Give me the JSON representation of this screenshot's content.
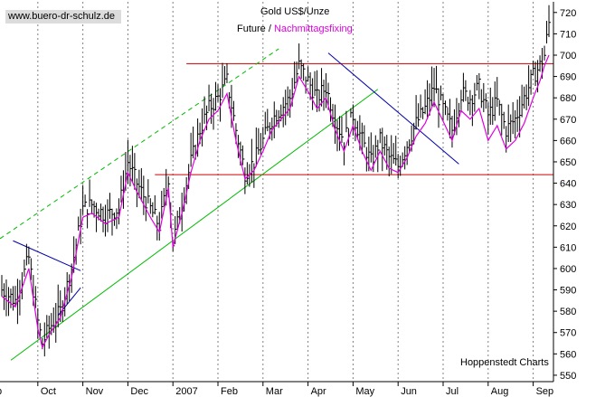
{
  "header": {
    "watermark": "www.buero-dr-schulz.de",
    "title": "Gold US$/Unze",
    "subtitle_prefix": "Future /",
    "subtitle_highlight": "Nachmittagsfixing",
    "source": "Hoppenstedt Charts"
  },
  "colors": {
    "price_bars": "#000000",
    "fixing_line": "#e000e0",
    "resistance_lines": "#cc0000",
    "trend_channel": "#00bb00",
    "down_trend": "#0000aa",
    "grid": "#808080",
    "watermark_bg": "#dcdcdc"
  },
  "chart_data": {
    "type": "line",
    "title": "Gold US$/Unze",
    "subtitle": "Future / Nachmittagsfixing",
    "ylim": [
      547,
      725
    ],
    "yticks": [
      550,
      560,
      570,
      580,
      590,
      600,
      610,
      620,
      630,
      640,
      650,
      660,
      670,
      680,
      690,
      700,
      710,
      720
    ],
    "y_axis_position": "right",
    "x_labels": [
      "Oct",
      "Nov",
      "Dec",
      "2007",
      "Feb",
      "Mar",
      "Apr",
      "May",
      "Jun",
      "Jul",
      "Aug",
      "Sep"
    ],
    "x_label_month_index": [
      1,
      2,
      3,
      4,
      5,
      6,
      7,
      8,
      9,
      10,
      11,
      12
    ],
    "first_x_label_clipped": "p",
    "x_domain_months": [
      0.16,
      12.45
    ],
    "grid": "vertical dashed at month starts",
    "series": [
      {
        "name": "Future",
        "style": "daily high-low bars",
        "x": [
          0.2,
          0.5,
          0.8,
          1.0,
          1.1,
          1.25,
          1.5,
          1.75,
          2.0,
          2.2,
          2.5,
          2.8,
          3.0,
          3.2,
          3.5,
          3.7,
          3.9,
          4.0,
          4.2,
          4.4,
          4.6,
          4.8,
          5.0,
          5.2,
          5.4,
          5.6,
          5.8,
          6.0,
          6.2,
          6.4,
          6.6,
          6.8,
          7.0,
          7.2,
          7.4,
          7.6,
          7.8,
          8.0,
          8.2,
          8.4,
          8.6,
          8.8,
          9.0,
          9.2,
          9.4,
          9.6,
          9.8,
          10.0,
          10.2,
          10.4,
          10.6,
          10.8,
          11.0,
          11.2,
          11.4,
          11.6,
          11.8,
          12.0,
          12.15,
          12.25,
          12.35
        ],
        "close": [
          590,
          585,
          605,
          575,
          565,
          572,
          580,
          600,
          628,
          630,
          625,
          628,
          650,
          640,
          628,
          620,
          643,
          612,
          630,
          650,
          665,
          675,
          680,
          688,
          665,
          645,
          650,
          660,
          670,
          675,
          680,
          695,
          688,
          680,
          685,
          670,
          660,
          672,
          660,
          650,
          660,
          652,
          648,
          658,
          668,
          675,
          685,
          675,
          665,
          682,
          680,
          685,
          672,
          678,
          665,
          670,
          680,
          690,
          695,
          700,
          715
        ]
      },
      {
        "name": "Nachmittagsfixing",
        "x": [
          0.2,
          0.5,
          0.8,
          1.0,
          1.1,
          1.25,
          1.5,
          1.75,
          2.0,
          2.2,
          2.5,
          2.8,
          3.0,
          3.2,
          3.5,
          3.7,
          3.9,
          4.0,
          4.2,
          4.4,
          4.6,
          4.8,
          5.0,
          5.2,
          5.4,
          5.6,
          5.8,
          6.0,
          6.2,
          6.4,
          6.6,
          6.8,
          7.0,
          7.2,
          7.4,
          7.6,
          7.8,
          8.0,
          8.2,
          8.4,
          8.6,
          8.8,
          9.0,
          9.2,
          9.4,
          9.6,
          9.8,
          10.0,
          10.2,
          10.4,
          10.6,
          10.8,
          11.0,
          11.2,
          11.4,
          11.6,
          11.8,
          12.0,
          12.15,
          12.25,
          12.35
        ],
        "values": [
          587,
          582,
          600,
          572,
          563,
          569,
          577,
          596,
          624,
          626,
          621,
          624,
          645,
          636,
          624,
          617,
          638,
          610,
          626,
          645,
          660,
          670,
          674,
          682,
          660,
          642,
          646,
          655,
          665,
          670,
          675,
          690,
          683,
          675,
          680,
          665,
          655,
          667,
          655,
          646,
          655,
          647,
          645,
          652,
          662,
          668,
          678,
          669,
          660,
          674,
          670,
          675,
          660,
          667,
          656,
          660,
          668,
          680,
          688,
          695,
          700
        ]
      }
    ],
    "annotations": {
      "resistance_lines": [
        {
          "value": 696,
          "x_from": 4.3,
          "x_to": 12.45
        },
        {
          "value": 644,
          "x_from": 3.6,
          "x_to": 12.45
        }
      ],
      "uptrend_channel_lower": {
        "from": [
          0.4,
          557
        ],
        "to": [
          8.55,
          684
        ]
      },
      "uptrend_channel_upper_dashed": {
        "from": [
          0.16,
          614
        ],
        "to": [
          6.35,
          703
        ]
      },
      "downtrend_lines": [
        {
          "from": [
            0.45,
            613
          ],
          "to": [
            1.95,
            599
          ]
        },
        {
          "from": [
            1.45,
            578
          ],
          "to": [
            1.95,
            591
          ]
        },
        {
          "from": [
            7.45,
            701
          ],
          "to": [
            10.35,
            649
          ]
        }
      ]
    }
  }
}
